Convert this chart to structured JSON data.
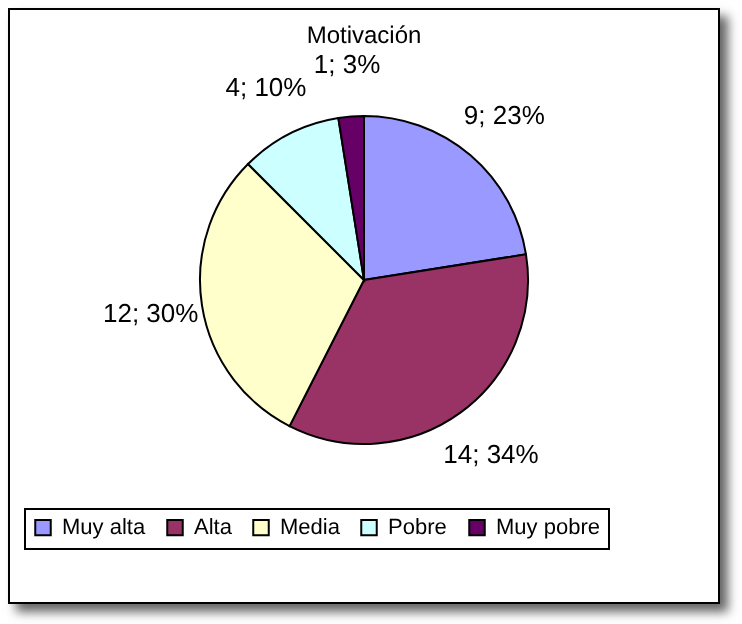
{
  "chart_data": {
    "type": "pie",
    "title": "Motivación",
    "categories": [
      "Muy alta",
      "Alta",
      "Media",
      "Pobre",
      "Muy pobre"
    ],
    "values": [
      9,
      14,
      12,
      4,
      1
    ],
    "colors": [
      "#9999ff",
      "#993366",
      "#ffffcc",
      "#ccffff",
      "#660066"
    ],
    "value_labels": [
      "9; 23%",
      "14; 34%",
      "12; 30%",
      "4; 10%",
      "1; 3%"
    ],
    "legend": "bottom"
  }
}
